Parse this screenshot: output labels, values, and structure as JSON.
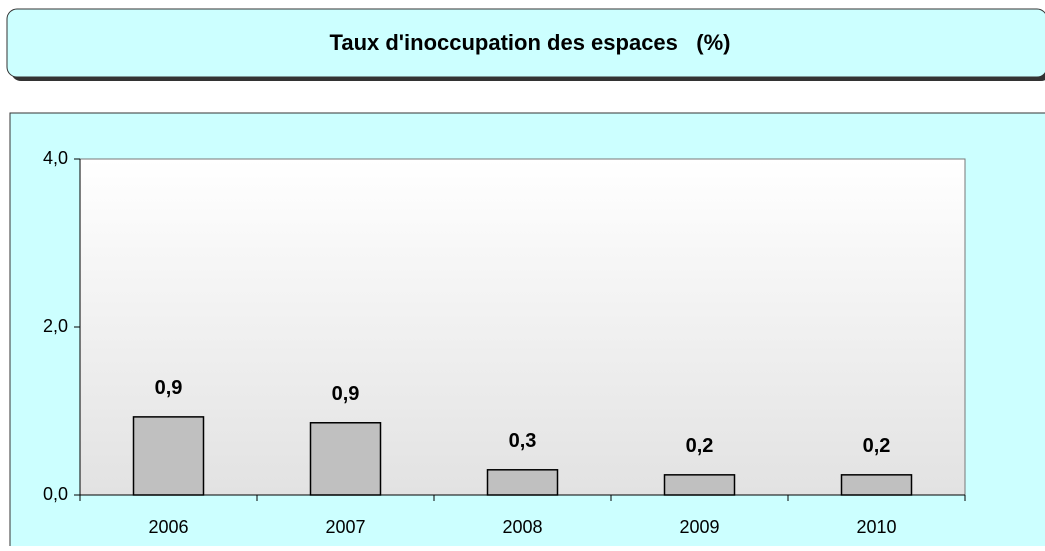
{
  "chart_data": {
    "type": "bar",
    "title": "Taux d'inoccupation des espaces   (%)",
    "categories": [
      "2006",
      "2007",
      "2008",
      "2009",
      "2010"
    ],
    "values": [
      0.93,
      0.86,
      0.3,
      0.24,
      0.24
    ],
    "value_labels": [
      "0,9",
      "0,9",
      "0,3",
      "0,2",
      "0,2"
    ],
    "color": "#c0c0c0",
    "ylim": [
      0,
      4
    ],
    "yticks": [
      {
        "value": 0,
        "label": "0,0"
      },
      {
        "value": 2,
        "label": "2,0"
      },
      {
        "value": 4,
        "label": "4,0"
      }
    ]
  }
}
